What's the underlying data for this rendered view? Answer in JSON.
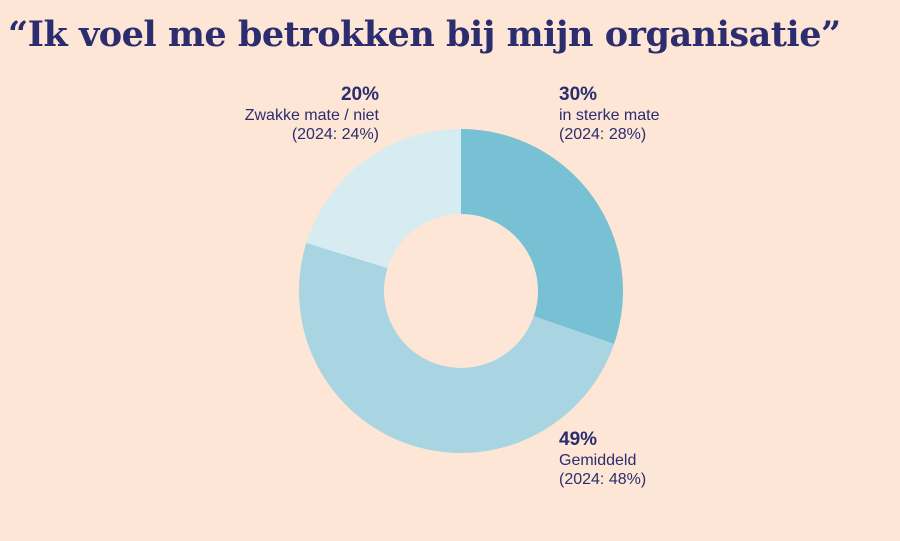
{
  "title": "“Ik voel me betrokken bij mijn organisatie”",
  "colors": {
    "background": "#fde6d6",
    "text": "#2b2d6e",
    "strong": "#78c0d3",
    "average": "#a9d4e1",
    "weak": "#d6ecf1"
  },
  "labels": {
    "weak": {
      "pct": "20%",
      "name": "Zwakke mate / niet",
      "prev": "(2024: 24%)"
    },
    "strong": {
      "pct": "30%",
      "name": "in sterke mate",
      "prev": "(2024: 28%)"
    },
    "average": {
      "pct": "49%",
      "name": "Gemiddeld",
      "prev": "(2024: 48%)"
    }
  },
  "chart_data": {
    "type": "pie",
    "subtype": "donut",
    "title": "“Ik voel me betrokken bij mijn organisatie”",
    "categories": [
      "in sterke mate",
      "Gemiddeld",
      "Zwakke mate / niet"
    ],
    "values": [
      30,
      49,
      20
    ],
    "previous_year": {
      "label": "2024",
      "values": [
        28,
        48,
        24
      ]
    },
    "colors": [
      "#78c0d3",
      "#a9d4e1",
      "#d6ecf1"
    ],
    "start_angle": "12 o'clock",
    "direction": "clockwise",
    "unit": "%"
  }
}
